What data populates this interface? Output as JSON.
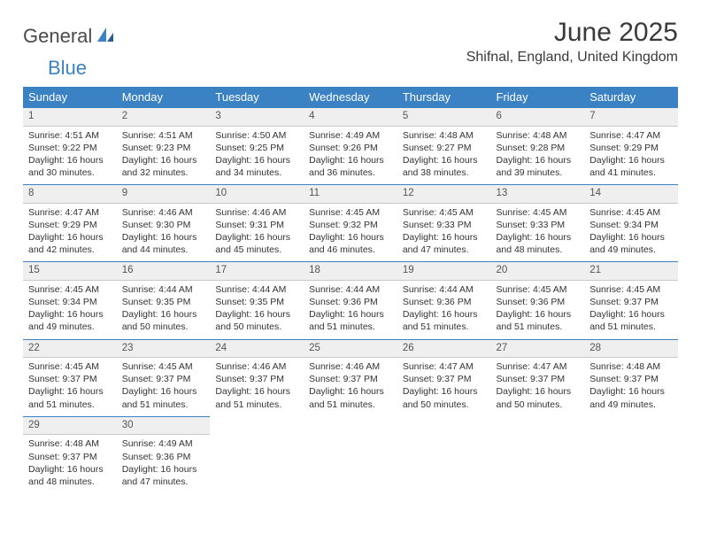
{
  "logo": {
    "text1": "General",
    "text2": "Blue"
  },
  "title": "June 2025",
  "location": "Shifnal, England, United Kingdom",
  "colors": {
    "header_bg": "#3b82c4",
    "header_text": "#ffffff",
    "daynum_bg": "#efefef",
    "body_text": "#333333",
    "rule": "#3b82c4"
  },
  "weekdays": [
    "Sunday",
    "Monday",
    "Tuesday",
    "Wednesday",
    "Thursday",
    "Friday",
    "Saturday"
  ],
  "days": [
    {
      "n": 1,
      "sunrise": "4:51 AM",
      "sunset": "9:22 PM",
      "daylight": "16 hours and 30 minutes."
    },
    {
      "n": 2,
      "sunrise": "4:51 AM",
      "sunset": "9:23 PM",
      "daylight": "16 hours and 32 minutes."
    },
    {
      "n": 3,
      "sunrise": "4:50 AM",
      "sunset": "9:25 PM",
      "daylight": "16 hours and 34 minutes."
    },
    {
      "n": 4,
      "sunrise": "4:49 AM",
      "sunset": "9:26 PM",
      "daylight": "16 hours and 36 minutes."
    },
    {
      "n": 5,
      "sunrise": "4:48 AM",
      "sunset": "9:27 PM",
      "daylight": "16 hours and 38 minutes."
    },
    {
      "n": 6,
      "sunrise": "4:48 AM",
      "sunset": "9:28 PM",
      "daylight": "16 hours and 39 minutes."
    },
    {
      "n": 7,
      "sunrise": "4:47 AM",
      "sunset": "9:29 PM",
      "daylight": "16 hours and 41 minutes."
    },
    {
      "n": 8,
      "sunrise": "4:47 AM",
      "sunset": "9:29 PM",
      "daylight": "16 hours and 42 minutes."
    },
    {
      "n": 9,
      "sunrise": "4:46 AM",
      "sunset": "9:30 PM",
      "daylight": "16 hours and 44 minutes."
    },
    {
      "n": 10,
      "sunrise": "4:46 AM",
      "sunset": "9:31 PM",
      "daylight": "16 hours and 45 minutes."
    },
    {
      "n": 11,
      "sunrise": "4:45 AM",
      "sunset": "9:32 PM",
      "daylight": "16 hours and 46 minutes."
    },
    {
      "n": 12,
      "sunrise": "4:45 AM",
      "sunset": "9:33 PM",
      "daylight": "16 hours and 47 minutes."
    },
    {
      "n": 13,
      "sunrise": "4:45 AM",
      "sunset": "9:33 PM",
      "daylight": "16 hours and 48 minutes."
    },
    {
      "n": 14,
      "sunrise": "4:45 AM",
      "sunset": "9:34 PM",
      "daylight": "16 hours and 49 minutes."
    },
    {
      "n": 15,
      "sunrise": "4:45 AM",
      "sunset": "9:34 PM",
      "daylight": "16 hours and 49 minutes."
    },
    {
      "n": 16,
      "sunrise": "4:44 AM",
      "sunset": "9:35 PM",
      "daylight": "16 hours and 50 minutes."
    },
    {
      "n": 17,
      "sunrise": "4:44 AM",
      "sunset": "9:35 PM",
      "daylight": "16 hours and 50 minutes."
    },
    {
      "n": 18,
      "sunrise": "4:44 AM",
      "sunset": "9:36 PM",
      "daylight": "16 hours and 51 minutes."
    },
    {
      "n": 19,
      "sunrise": "4:44 AM",
      "sunset": "9:36 PM",
      "daylight": "16 hours and 51 minutes."
    },
    {
      "n": 20,
      "sunrise": "4:45 AM",
      "sunset": "9:36 PM",
      "daylight": "16 hours and 51 minutes."
    },
    {
      "n": 21,
      "sunrise": "4:45 AM",
      "sunset": "9:37 PM",
      "daylight": "16 hours and 51 minutes."
    },
    {
      "n": 22,
      "sunrise": "4:45 AM",
      "sunset": "9:37 PM",
      "daylight": "16 hours and 51 minutes."
    },
    {
      "n": 23,
      "sunrise": "4:45 AM",
      "sunset": "9:37 PM",
      "daylight": "16 hours and 51 minutes."
    },
    {
      "n": 24,
      "sunrise": "4:46 AM",
      "sunset": "9:37 PM",
      "daylight": "16 hours and 51 minutes."
    },
    {
      "n": 25,
      "sunrise": "4:46 AM",
      "sunset": "9:37 PM",
      "daylight": "16 hours and 51 minutes."
    },
    {
      "n": 26,
      "sunrise": "4:47 AM",
      "sunset": "9:37 PM",
      "daylight": "16 hours and 50 minutes."
    },
    {
      "n": 27,
      "sunrise": "4:47 AM",
      "sunset": "9:37 PM",
      "daylight": "16 hours and 50 minutes."
    },
    {
      "n": 28,
      "sunrise": "4:48 AM",
      "sunset": "9:37 PM",
      "daylight": "16 hours and 49 minutes."
    },
    {
      "n": 29,
      "sunrise": "4:48 AM",
      "sunset": "9:37 PM",
      "daylight": "16 hours and 48 minutes."
    },
    {
      "n": 30,
      "sunrise": "4:49 AM",
      "sunset": "9:36 PM",
      "daylight": "16 hours and 47 minutes."
    }
  ],
  "labels": {
    "sunrise": "Sunrise:",
    "sunset": "Sunset:",
    "daylight": "Daylight:"
  },
  "first_day_column": 0,
  "rows": 5,
  "cols": 7
}
